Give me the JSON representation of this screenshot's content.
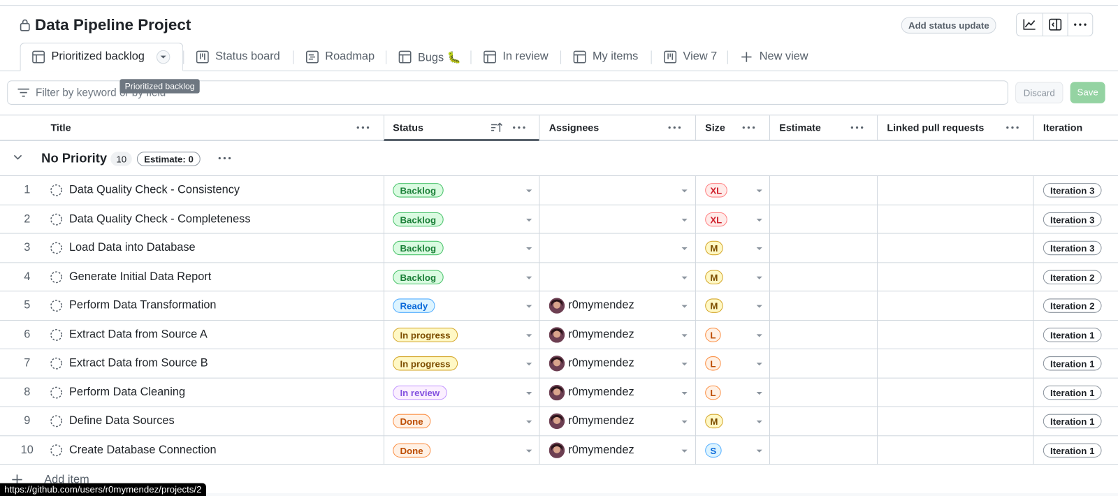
{
  "header": {
    "title": "Data Pipeline Project",
    "status_button": "Add status update"
  },
  "tabs": [
    "Prioritized backlog",
    "Status board",
    "Roadmap",
    "Bugs 🐛",
    "In review",
    "My items",
    "View 7"
  ],
  "new_view": "New view",
  "tooltip": "Prioritized backlog",
  "filter": {
    "placeholder": "Filter by keyword or by field",
    "discard": "Discard",
    "save": "Save"
  },
  "columns": [
    "Title",
    "Status",
    "Assignees",
    "Size",
    "Estimate",
    "Linked pull requests",
    "Iteration"
  ],
  "group": {
    "name": "No Priority",
    "count": 10,
    "estimate": "Estimate: 0"
  },
  "rows": [
    {
      "number": 1,
      "title": "Data Quality Check - Consistency",
      "status": "Backlog",
      "status_color": "green",
      "size": "XL",
      "size_color": "red",
      "iteration": "Iteration 3"
    },
    {
      "number": 2,
      "title": "Data Quality Check - Completeness",
      "status": "Backlog",
      "status_color": "green",
      "size": "XL",
      "size_color": "red",
      "iteration": "Iteration 3"
    },
    {
      "number": 3,
      "title": "Load Data into Database",
      "status": "Backlog",
      "status_color": "green",
      "size": "M",
      "size_color": "yellow",
      "iteration": "Iteration 3"
    },
    {
      "number": 4,
      "title": "Generate Initial Data Report",
      "status": "Backlog",
      "status_color": "green",
      "size": "M",
      "size_color": "yellow",
      "iteration": "Iteration 2"
    },
    {
      "number": 5,
      "title": "Perform Data Transformation",
      "status": "Ready",
      "status_color": "blue",
      "assignee": "r0mymendez",
      "size": "M",
      "size_color": "yellow",
      "iteration": "Iteration 2"
    },
    {
      "number": 6,
      "title": "Extract Data from Source A",
      "status": "In progress",
      "status_color": "yellow",
      "assignee": "r0mymendez",
      "size": "L",
      "size_color": "orange",
      "iteration": "Iteration 1"
    },
    {
      "number": 7,
      "title": "Extract Data from Source B",
      "status": "In progress",
      "status_color": "yellow",
      "assignee": "r0mymendez",
      "size": "L",
      "size_color": "orange",
      "iteration": "Iteration 1"
    },
    {
      "number": 8,
      "title": "Perform Data Cleaning",
      "status": "In review",
      "status_color": "purple",
      "assignee": "r0mymendez",
      "size": "L",
      "size_color": "orange",
      "iteration": "Iteration 1"
    },
    {
      "number": 9,
      "title": "Define Data Sources",
      "status": "Done",
      "status_color": "orange",
      "assignee": "r0mymendez",
      "size": "M",
      "size_color": "yellow",
      "iteration": "Iteration 1"
    },
    {
      "number": 10,
      "title": "Create Database Connection",
      "status": "Done",
      "status_color": "orange",
      "assignee": "r0mymendez",
      "size": "S",
      "size_color": "blue",
      "iteration": "Iteration 1"
    }
  ],
  "add_item": "Add item",
  "status_url": "https://github.com/users/r0mymendez/projects/2"
}
